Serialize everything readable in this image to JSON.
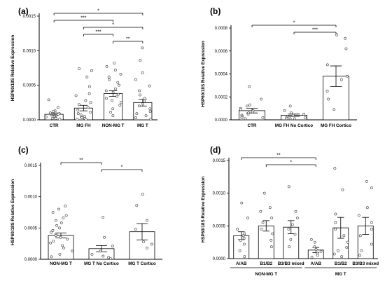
{
  "chart_data": [
    {
      "type": "bar",
      "panel_label": "(a)",
      "ylabel": "HSP60/18S Relative Expression",
      "ylim": [
        0,
        0.0015
      ],
      "yticks": [
        "0.0000",
        "0.0005",
        "0.0010",
        "0.0015"
      ],
      "categories": [
        "CTR",
        "MG FH",
        "NON-MG T",
        "MG T"
      ],
      "values": [
        8e-05,
        0.00017,
        0.00038,
        0.00025
      ],
      "errors": [
        2e-05,
        4e-05,
        4e-05,
        5e-05
      ],
      "points": [
        [
          0.00029,
          0.00018,
          0.00013,
          0.00012,
          0.0001,
          9e-05,
          8e-05,
          7e-05,
          6e-05,
          5e-05,
          4e-05,
          3e-05,
          2e-05,
          2e-05,
          1e-05
        ],
        [
          0.00074,
          0.00071,
          0.00062,
          0.00048,
          0.00038,
          0.00035,
          0.00028,
          0.00025,
          0.00022,
          0.00018,
          0.00014,
          0.00011,
          9e-05,
          7e-05,
          5e-05,
          4e-05,
          3e-05,
          2e-05,
          1e-05,
          1e-05
        ],
        [
          0.00082,
          0.00077,
          0.00072,
          0.00066,
          0.00062,
          0.00058,
          0.00054,
          0.0005,
          0.00045,
          0.00042,
          0.0004,
          0.00037,
          0.00034,
          0.00031,
          0.00028,
          0.00025,
          0.00021,
          0.00016,
          0.00011,
          6e-05
        ],
        [
          0.00104,
          0.00086,
          0.00068,
          0.00058,
          0.00049,
          0.00042,
          0.00036,
          0.00031,
          0.00027,
          0.00023,
          0.0002,
          0.00016,
          0.00012,
          9e-05,
          6e-05,
          3e-05,
          1e-05
        ]
      ],
      "significance": [
        {
          "from": 0,
          "to": 3,
          "label": "*"
        },
        {
          "from": 0,
          "to": 2,
          "label": "***"
        },
        {
          "from": 1,
          "to": 3,
          "label": "*"
        },
        {
          "from": 1,
          "to": 2,
          "label": "***"
        },
        {
          "from": 2,
          "to": 3,
          "label": "**"
        }
      ]
    },
    {
      "type": "bar",
      "panel_label": "(b)",
      "ylabel": "HSP60/18S Relative Expression",
      "ylim": [
        0,
        0.0008
      ],
      "yticks": [
        "0.0000",
        "0.0002",
        "0.0004",
        "0.0006",
        "0.0008"
      ],
      "categories": [
        "CTR",
        "MG FH No Cortico",
        "MG FH Cortico"
      ],
      "values": [
        8e-05,
        4e-05,
        0.00038
      ],
      "errors": [
        2e-05,
        1e-05,
        9e-05
      ],
      "points": [
        [
          0.00029,
          0.00018,
          0.00013,
          0.00012,
          0.0001,
          9e-05,
          8e-05,
          7e-05,
          6e-05,
          5e-05,
          4e-05,
          3e-05,
          2e-05,
          2e-05,
          1e-05
        ],
        [
          0.00012,
          8e-05,
          6e-05,
          5e-05,
          4e-05,
          3e-05,
          2e-05,
          2e-05,
          1e-05,
          1e-05,
          1e-05
        ],
        [
          0.00074,
          0.00071,
          0.00062,
          0.00048,
          0.00038,
          0.00035,
          0.00025,
          0.00018,
          9e-05
        ]
      ],
      "significance": [
        {
          "from": 0,
          "to": 2,
          "label": "*"
        },
        {
          "from": 1,
          "to": 2,
          "label": "***"
        }
      ]
    },
    {
      "type": "bar",
      "panel_label": "(c)",
      "ylabel": "HSP60/18S Relative Expression",
      "ylim": [
        0,
        0.0015
      ],
      "yticks": [
        "0.0000",
        "0.0005",
        "0.0010",
        "0.0015"
      ],
      "categories": [
        "NON-MG T",
        "MG T No Cortico",
        "MG T Cortico"
      ],
      "values": [
        0.00038,
        0.00017,
        0.00044
      ],
      "errors": [
        4e-05,
        5e-05,
        0.00013
      ],
      "points": [
        [
          0.00085,
          0.0008,
          0.00075,
          0.0007,
          0.00066,
          0.00062,
          0.00058,
          0.00054,
          0.0005,
          0.00046,
          0.00043,
          0.0004,
          0.00038,
          0.00035,
          0.00032,
          0.00029,
          0.00026,
          0.00022,
          0.00018,
          0.00013,
          8e-05,
          4e-05
        ],
        [
          0.00067,
          0.00035,
          0.00021,
          0.00013,
          8e-05,
          5e-05,
          3e-05,
          1e-05
        ],
        [
          0.00104,
          0.00086,
          0.00062,
          0.00048,
          0.00028,
          0.00024,
          0.00018
        ]
      ],
      "significance": [
        {
          "from": 0,
          "to": 1,
          "label": "**"
        },
        {
          "from": 1,
          "to": 2,
          "label": "*"
        }
      ]
    },
    {
      "type": "bar",
      "panel_label": "(d)",
      "ylabel": "HSP60/18S Relative Expression",
      "ylim": [
        0,
        0.0015
      ],
      "yticks": [
        "0.0000",
        "0.0005",
        "0.0010",
        "0.0015"
      ],
      "categories": [
        "A/AB",
        "B1/B2",
        "B3/B3 mixed",
        "A/AB",
        "B1/B2",
        "B3/B3 mixed"
      ],
      "groups": [
        {
          "label": "NON-MG T",
          "from": 0,
          "to": 2
        },
        {
          "label": "MG T",
          "from": 3,
          "to": 5
        }
      ],
      "values": [
        0.00035,
        0.0005,
        0.00048,
        0.00013,
        0.00047,
        0.0005
      ],
      "errors": [
        6e-05,
        8e-05,
        0.0001,
        4e-05,
        0.00016,
        0.00013
      ],
      "points": [
        [
          0.00085,
          0.00062,
          0.00045,
          0.00038,
          0.00035,
          0.00031,
          0.00028,
          0.00022,
          0.00012,
          3e-05
        ],
        [
          0.001,
          0.00078,
          0.00072,
          0.00062,
          0.00055,
          0.00045,
          0.00038,
          0.00028,
          0.00018
        ],
        [
          0.0011,
          0.00072,
          0.00062,
          0.00052,
          0.00045,
          0.00037,
          0.00029,
          0.00018
        ],
        [
          0.00029,
          0.00025,
          0.00018,
          0.00014,
          0.00011,
          8e-05,
          5e-05,
          2e-05
        ],
        [
          0.00138,
          0.00105,
          0.00068,
          0.00055,
          0.00045,
          0.00035,
          0.00025,
          0.00017,
          0.00012,
          7e-05,
          3e-05
        ],
        [
          0.00118,
          0.00108,
          0.00078,
          0.00066,
          0.00055,
          0.00045,
          0.00035,
          0.00022,
          0.00012,
          5e-05
        ]
      ],
      "significance": [
        {
          "from": 0,
          "to": 3,
          "label": "**"
        },
        {
          "from": 1,
          "to": 3,
          "label": "*"
        }
      ]
    }
  ]
}
